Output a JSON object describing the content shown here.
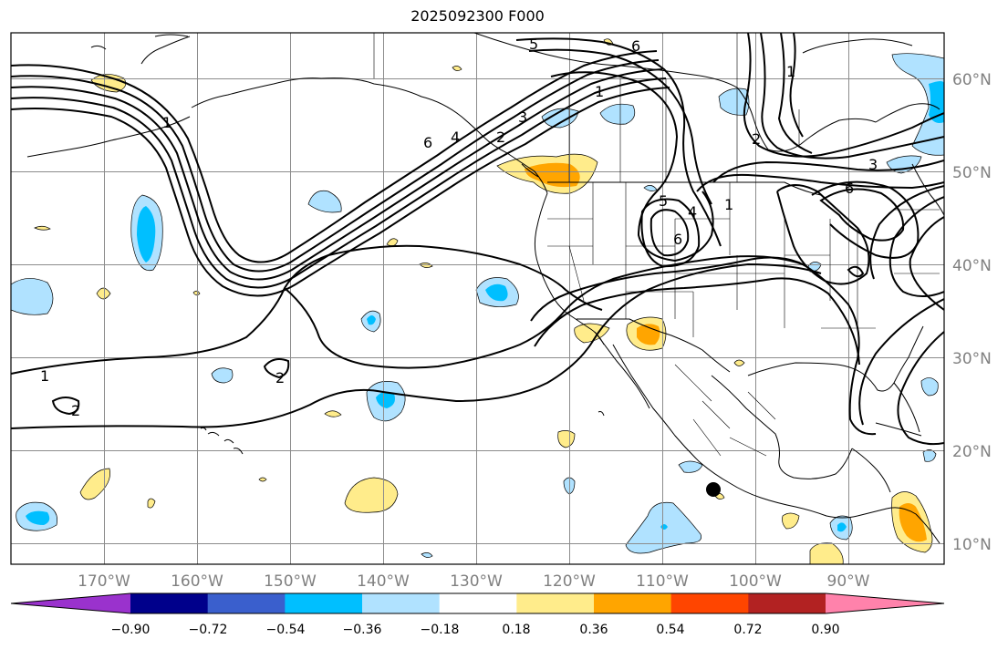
{
  "title": "2025092300 F000",
  "longitude_labels": [
    "170°W",
    "160°W",
    "150°W",
    "140°W",
    "130°W",
    "120°W",
    "110°W",
    "100°W",
    "90°W"
  ],
  "latitude_labels": [
    "60°N",
    "50°N",
    "40°N",
    "30°N",
    "20°N",
    "10°N"
  ],
  "colorbar": {
    "ticks": [
      "−0.90",
      "−0.72",
      "−0.54",
      "−0.36",
      "−0.18",
      "0.18",
      "0.36",
      "0.54",
      "0.72",
      "0.90"
    ],
    "colors": [
      "#9a32cd",
      "#00008b",
      "#3a5fcd",
      "#00bfff",
      "#b0e2ff",
      "#ffffff",
      "#ffec8b",
      "#ffa500",
      "#ff4500",
      "#b22222",
      "#ff82ab"
    ]
  },
  "contour_labels": [
    {
      "text": "5",
      "id": "c1"
    },
    {
      "text": "6",
      "id": "c2"
    },
    {
      "text": "1",
      "id": "c3"
    },
    {
      "text": "1",
      "id": "c4"
    },
    {
      "text": "3",
      "id": "c5"
    },
    {
      "text": "6",
      "id": "c6"
    },
    {
      "text": "4",
      "id": "c7"
    },
    {
      "text": "2",
      "id": "c8"
    },
    {
      "text": "5",
      "id": "c9"
    },
    {
      "text": "1",
      "id": "c10"
    },
    {
      "text": "6",
      "id": "c11"
    },
    {
      "text": "4",
      "id": "c12"
    },
    {
      "text": "3",
      "id": "c13"
    },
    {
      "text": "6",
      "id": "c14"
    },
    {
      "text": "1",
      "id": "c15"
    },
    {
      "text": "2",
      "id": "c16"
    },
    {
      "text": "1",
      "id": "c17"
    },
    {
      "text": "2",
      "id": "c18"
    },
    {
      "text": "2",
      "id": "c19"
    }
  ],
  "colors": {
    "positive_light": "#ffec8b",
    "positive_mid": "#ffa500",
    "negative_light": "#b0e2ff",
    "negative_mid": "#00bfff",
    "grid": "#8c8c8c",
    "contour": "#000000"
  },
  "marker": "storm-center-dot"
}
